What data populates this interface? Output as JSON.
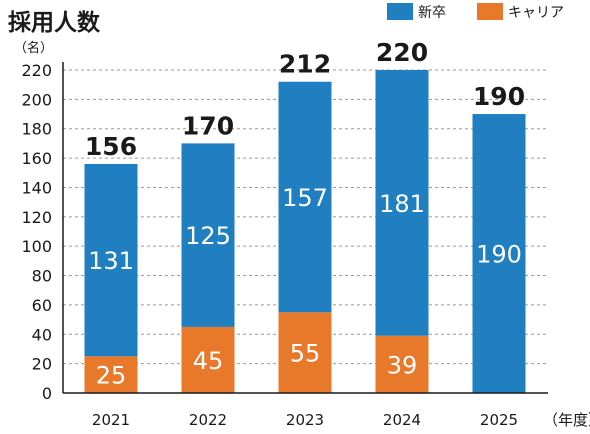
{
  "chart_data": {
    "type": "bar",
    "stacked": true,
    "title": "採用人数",
    "ylabel": "（名）",
    "xlabel": "（年度）",
    "categories": [
      "2021",
      "2022",
      "2023",
      "2024",
      "2025"
    ],
    "series": [
      {
        "name": "キャリア",
        "values": [
          25,
          45,
          55,
          39,
          0
        ],
        "color": "#e8792a"
      },
      {
        "name": "新卒",
        "values": [
          131,
          125,
          157,
          181,
          190
        ],
        "color": "#1f7fc1"
      }
    ],
    "totals": [
      156,
      170,
      212,
      220,
      190
    ],
    "ylim": [
      0,
      220
    ],
    "yticks": [
      0,
      20,
      40,
      60,
      80,
      100,
      120,
      140,
      160,
      180,
      200,
      220
    ],
    "grid": true,
    "legend_position": "top-right",
    "legend_order": [
      "新卒",
      "キャリア"
    ]
  }
}
